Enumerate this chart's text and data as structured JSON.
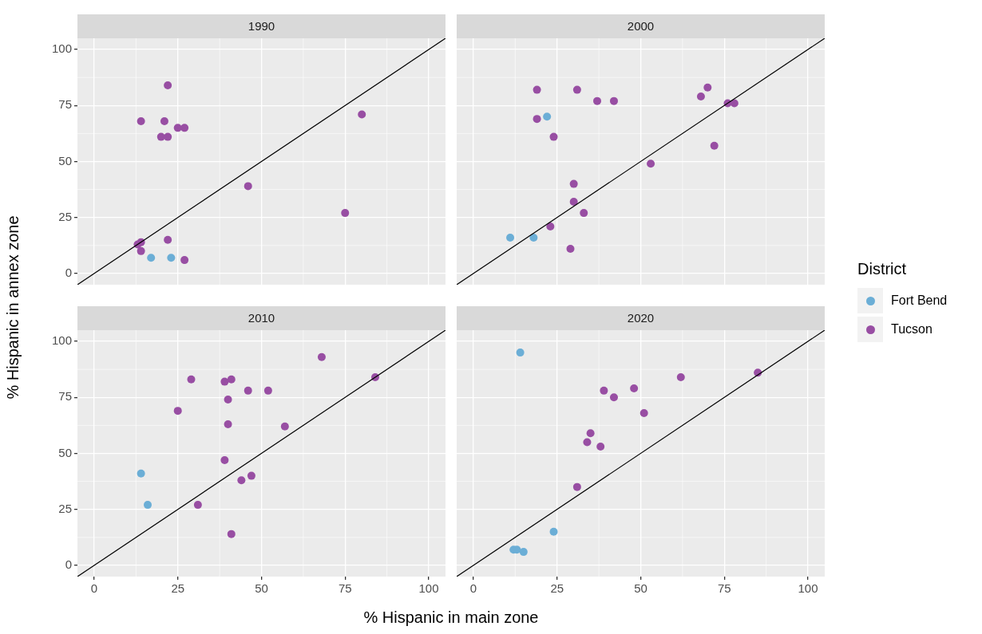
{
  "chart_data": [
    {
      "type": "scatter",
      "title": "1990",
      "ylabel": "% Hispanic in annex zone",
      "legend_title": "District",
      "legend": "right",
      "marker": "circle",
      "grid": true,
      "tick_labels": "y",
      "xlim": [
        -5,
        105
      ],
      "ylim": [
        -5,
        105
      ],
      "xticks": [
        0,
        25,
        50,
        75,
        100
      ],
      "yticks": [
        0,
        25,
        50,
        75,
        100
      ],
      "series": [
        {
          "name": "Fort Bend",
          "color": "#6baed6",
          "x": [
            17,
            23
          ],
          "values": [
            7,
            7
          ]
        },
        {
          "name": "Tucson",
          "color": "#984ea3",
          "x": [
            22,
            14,
            21,
            25,
            27,
            20,
            22,
            80,
            46,
            75,
            14,
            13,
            14,
            22,
            27
          ],
          "values": [
            84,
            68,
            68,
            65,
            65,
            61,
            61,
            71,
            39,
            27,
            14,
            13,
            10,
            15,
            6
          ]
        },
        {
          "type": "line",
          "marker": "none",
          "color": "#000000",
          "x": [
            -5,
            105
          ],
          "values": [
            -5,
            105
          ]
        }
      ]
    },
    {
      "type": "scatter",
      "title": "2000",
      "marker": "circle",
      "grid": true,
      "tick_labels": false,
      "xlim": [
        -5,
        105
      ],
      "ylim": [
        -5,
        105
      ],
      "xticks": [
        0,
        25,
        50,
        75,
        100
      ],
      "yticks": [
        0,
        25,
        50,
        75,
        100
      ],
      "series": [
        {
          "color": "#6baed6",
          "x": [
            22,
            11,
            18
          ],
          "values": [
            70,
            16,
            16
          ]
        },
        {
          "color": "#984ea3",
          "x": [
            19,
            31,
            37,
            42,
            70,
            68,
            76,
            78,
            19,
            24,
            72,
            53,
            30,
            30,
            33,
            23,
            29
          ],
          "values": [
            82,
            82,
            77,
            77,
            83,
            79,
            76,
            76,
            69,
            61,
            57,
            49,
            40,
            32,
            27,
            21,
            11
          ]
        },
        {
          "type": "line",
          "marker": "none",
          "color": "#000000",
          "x": [
            -5,
            105
          ],
          "values": [
            -5,
            105
          ]
        }
      ]
    },
    {
      "type": "scatter",
      "title": "2010",
      "xlabel": "% Hispanic in main zone",
      "marker": "circle",
      "grid": true,
      "xlim": [
        -5,
        105
      ],
      "ylim": [
        -5,
        105
      ],
      "xticks": [
        0,
        25,
        50,
        75,
        100
      ],
      "yticks": [
        0,
        25,
        50,
        75,
        100
      ],
      "series": [
        {
          "color": "#6baed6",
          "x": [
            14,
            16
          ],
          "values": [
            41,
            27
          ]
        },
        {
          "color": "#984ea3",
          "x": [
            68,
            84,
            29,
            39,
            41,
            46,
            52,
            40,
            25,
            40,
            57,
            39,
            44,
            47,
            31,
            41
          ],
          "values": [
            93,
            84,
            83,
            82,
            83,
            78,
            78,
            74,
            69,
            63,
            62,
            47,
            38,
            40,
            27,
            14
          ]
        },
        {
          "type": "line",
          "marker": "none",
          "color": "#000000",
          "x": [
            -5,
            105
          ],
          "values": [
            -5,
            105
          ]
        }
      ]
    },
    {
      "type": "scatter",
      "title": "2020",
      "marker": "circle",
      "grid": true,
      "tick_labels": "x",
      "xlim": [
        -5,
        105
      ],
      "ylim": [
        -5,
        105
      ],
      "xticks": [
        0,
        25,
        50,
        75,
        100
      ],
      "yticks": [
        0,
        25,
        50,
        75,
        100
      ],
      "series": [
        {
          "color": "#6baed6",
          "x": [
            14,
            24,
            12,
            13,
            15
          ],
          "values": [
            95,
            15,
            7,
            7,
            6
          ]
        },
        {
          "color": "#984ea3",
          "x": [
            62,
            85,
            39,
            42,
            48,
            51,
            35,
            34,
            38,
            31
          ],
          "values": [
            84,
            86,
            78,
            75,
            79,
            68,
            59,
            55,
            53,
            35
          ]
        },
        {
          "type": "line",
          "marker": "none",
          "color": "#000000",
          "x": [
            -5,
            105
          ],
          "values": [
            -5,
            105
          ]
        }
      ]
    }
  ]
}
